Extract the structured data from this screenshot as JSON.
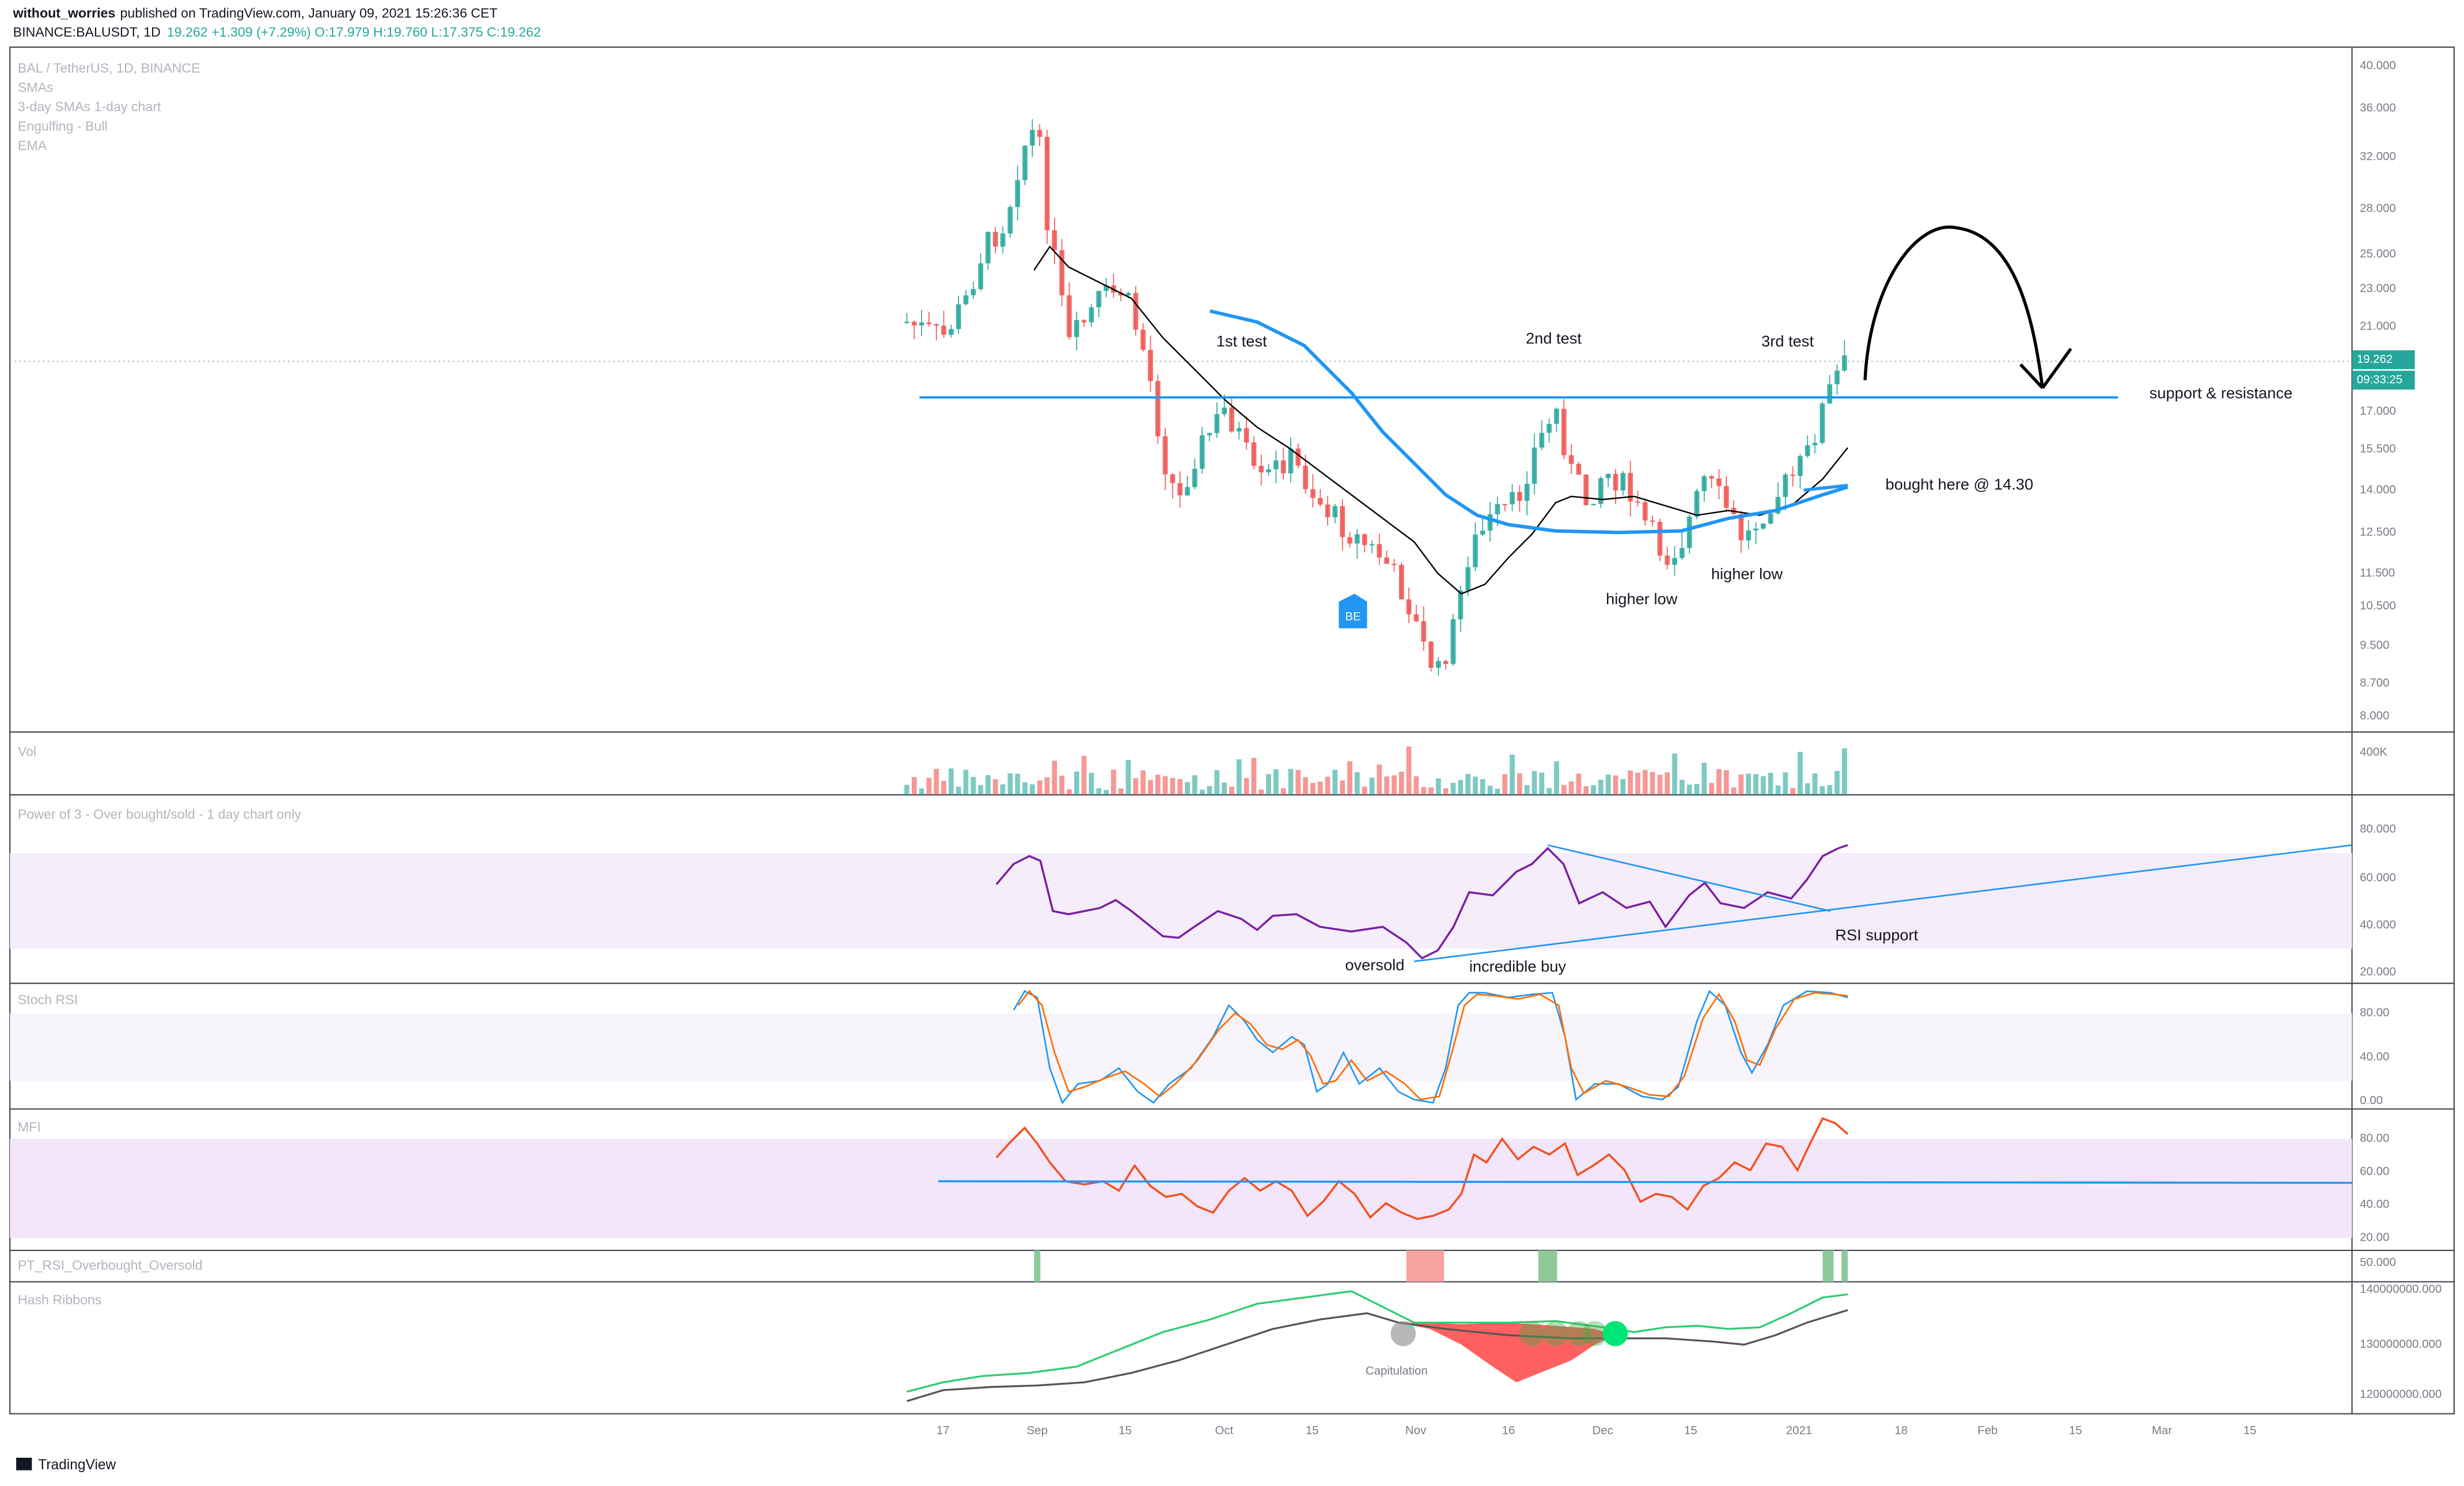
{
  "header": {
    "author": "without_worries",
    "published": "published on TradingView.com, January 09, 2021 15:26:36 CET",
    "symbol": "BINANCE:BALUSDT, 1D",
    "quote": "19.262 +1.309 (+7.29%) O:17.979 H:19.760 L:17.375 C:19.262"
  },
  "legend": [
    "BAL / TetherUS, 1D, BINANCE",
    "SMAs",
    "3-day SMAs 1-day chart",
    "Engulfing - Bull",
    "EMA"
  ],
  "price_axis": [
    "40.000",
    "36.000",
    "32.000",
    "28.000",
    "25.000",
    "23.000",
    "21.000",
    "17.000",
    "15.500",
    "14.000",
    "12.500",
    "11.500",
    "10.500",
    "9.500",
    "8.700",
    "8.000"
  ],
  "price_tags": [
    "19.262",
    "09:33:25"
  ],
  "annotations": [
    "1st test",
    "2nd test",
    "3rd test",
    "support & resistance",
    "bought here @ 14.30",
    "higher low",
    "higher low",
    "BE"
  ],
  "panels": {
    "volume": {
      "title": "Vol",
      "ticks": [
        "400K"
      ]
    },
    "rsi": {
      "title": "Power of 3 - Over bought/sold - 1 day chart only",
      "ticks": [
        "80.000",
        "60.000",
        "40.000",
        "20.000"
      ],
      "annotations": [
        "oversold",
        "incredible buy",
        "RSI support"
      ]
    },
    "stoch": {
      "title": "Stoch RSI",
      "ticks": [
        "80.00",
        "40.00",
        "0.00"
      ]
    },
    "mfi": {
      "title": "MFI",
      "ticks": [
        "80.00",
        "60.00",
        "40.00",
        "20.00"
      ]
    },
    "pt_rsi": {
      "title": "PT_RSI_Overbought_Oversold",
      "ticks": [
        "50.000"
      ]
    },
    "hash": {
      "title": "Hash Ribbons",
      "ticks": [
        "140000000.000",
        "130000000.000",
        "120000000.000"
      ],
      "annotations": [
        "Capitulation"
      ]
    }
  },
  "time_axis": [
    "17",
    "Sep",
    "15",
    "Oct",
    "15",
    "Nov",
    "16",
    "Dec",
    "15",
    "2021",
    "18",
    "Feb",
    "15",
    "Mar",
    "15"
  ],
  "footer": "TradingView"
}
